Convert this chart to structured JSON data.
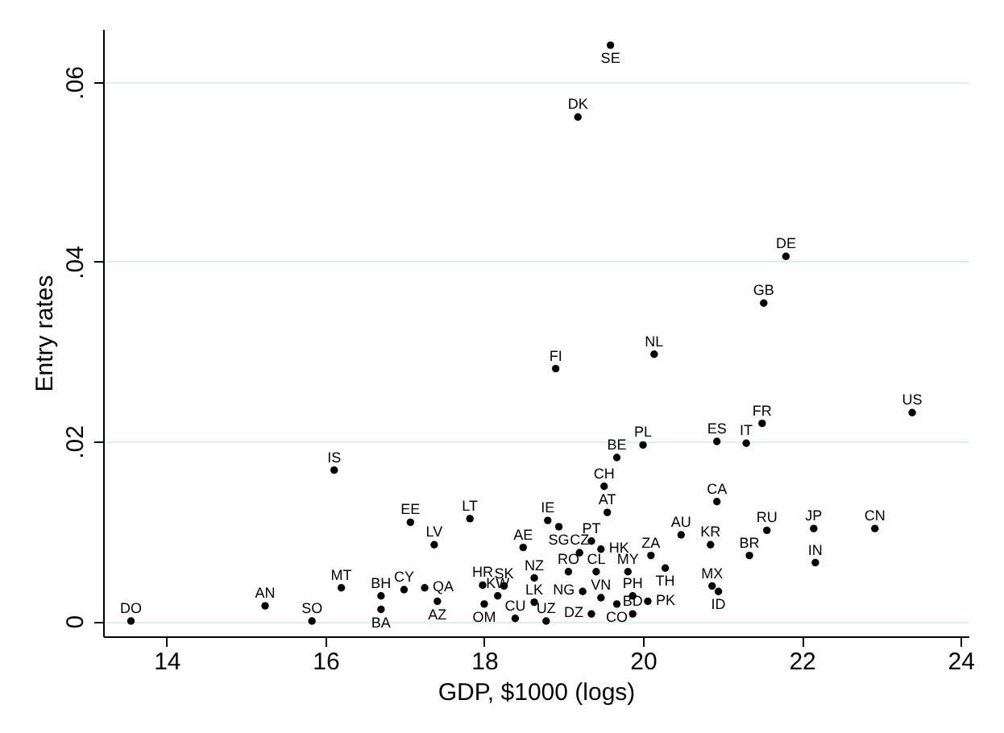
{
  "chart_data": {
    "type": "scatter",
    "xlabel": "GDP, $1000 (logs)",
    "ylabel": "Entry rates",
    "marker": "circle",
    "grid": "y",
    "xlim": [
      13.2,
      24.1
    ],
    "xticks": [
      14,
      16,
      18,
      20,
      22,
      24
    ],
    "ylim": [
      -0.0017,
      0.0659
    ],
    "yticks": [
      0,
      {
        "value": 0.02,
        "label": ".02"
      },
      {
        "value": 0.04,
        "label": ".04"
      },
      {
        "value": 0.06,
        "label": ".06"
      }
    ],
    "series": [
      {
        "color": "#000000",
        "x": [
          19.59,
          19.18,
          21.8,
          21.52,
          20.14,
          18.9,
          23.39,
          21.5,
          20.93,
          21.3,
          20.0,
          19.67,
          16.11,
          19.51,
          20.93,
          19.55,
          17.82,
          17.07,
          18.8,
          18.94,
          20.48,
          21.56,
          22.15,
          22.92,
          17.37,
          20.85,
          19.35,
          18.49,
          19.47,
          19.2,
          21.34,
          20.1,
          22.17,
          20.28,
          18.63,
          19.06,
          19.41,
          19.81,
          16.2,
          18.25,
          17.98,
          18.17,
          20.87,
          20.95,
          19.24,
          19.47,
          19.87,
          20.06,
          19.67,
          19.87,
          19.35,
          18.78,
          18.39,
          18.63,
          16.7,
          16.99,
          15.24,
          13.55,
          18.0,
          17.41,
          17.25,
          16.7,
          15.83
        ],
        "values": [
          0.0641,
          0.0561,
          0.0406,
          0.0354,
          0.0297,
          0.0281,
          0.0232,
          0.022,
          0.02,
          0.0198,
          0.0196,
          0.0182,
          0.0168,
          0.015,
          0.0133,
          0.0121,
          0.0114,
          0.011,
          0.0112,
          0.0105,
          0.0096,
          0.0101,
          0.0103,
          0.0103,
          0.0085,
          0.0085,
          0.0089,
          0.0082,
          0.008,
          0.0076,
          0.0073,
          0.0073,
          0.0065,
          0.0059,
          0.0048,
          0.0055,
          0.0055,
          0.0055,
          0.0037,
          0.0039,
          0.004,
          0.0028,
          0.0039,
          0.0033,
          0.0033,
          0.0026,
          0.0028,
          0.0022,
          0.0019,
          0.0008,
          0.0008,
          0.0,
          0.0003,
          0.0021,
          0.0028,
          0.0035,
          0.0017,
          0.0,
          0.0019,
          0.0022,
          0.0037,
          0.0013,
          0.0
        ],
        "value_labels": [
          "SE",
          "DK",
          "DE",
          "GB",
          "NL",
          "FI",
          "US",
          "FR",
          "ES",
          "IT",
          "PL",
          "BE",
          "IS",
          "CH",
          "CA",
          "AT",
          "LT",
          "EE",
          "IE",
          "SG",
          "AU",
          "RU",
          "JP",
          "CN",
          "LV",
          "KR",
          "PT",
          "AE",
          "HK",
          "CZ",
          "BR",
          "ZA",
          "IN",
          "TH",
          "NZ",
          "RO",
          "CL",
          "MY",
          "MT",
          "SK",
          "HR",
          "KW",
          "MX",
          "ID",
          "NG",
          "VN",
          "PH",
          "PK",
          "CO",
          "BD",
          "DZ",
          "UZ",
          "CU",
          "LK",
          "BH",
          "CY",
          "AN",
          "DO",
          "OM",
          "AZ",
          "QA",
          "BA",
          "SO"
        ]
      }
    ]
  }
}
